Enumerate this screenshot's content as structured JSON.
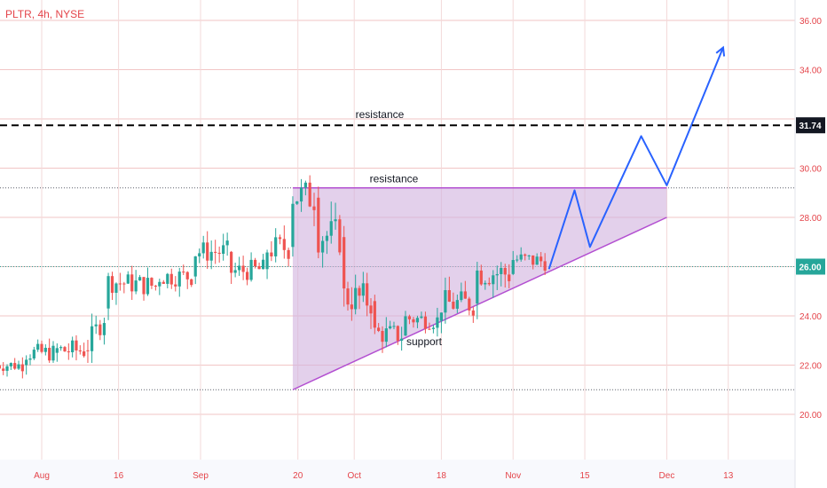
{
  "header": {
    "ticker": "PLTR, 4h, NYSE"
  },
  "colors": {
    "up": "#26a69a",
    "down": "#ef5350",
    "triangle_fill": "#d1b1dd",
    "triangle_edge": "#b34fd1",
    "projection": "#2962ff",
    "price_label_text": "#e4444a",
    "current_price_badge": "#26a69a",
    "dashed_level_badge": "#131722",
    "grid": "#f2c6c6"
  },
  "chart_data": {
    "type": "candlestick",
    "title": "PLTR, 4h, NYSE",
    "y_axis": {
      "side": "right",
      "range": [
        18.5,
        37.0
      ],
      "tick_labels": [
        "36.00",
        "34.00",
        "31.74",
        "30.00",
        "28.00",
        "26.00",
        "24.00",
        "22.00",
        "20.00"
      ]
    },
    "x_axis": {
      "tick_labels": [
        "Aug",
        "16",
        "Sep",
        "20",
        "Oct",
        "18",
        "Nov",
        "15",
        "Dec",
        "13"
      ]
    },
    "grid": true,
    "candles_approx": [
      {
        "date": "2021-07-23",
        "low": 21.8,
        "high": 22.6,
        "open": 22.2,
        "close": 22.0
      },
      {
        "date": "2021-07-29",
        "low": 21.7,
        "high": 22.9,
        "open": 22.0,
        "close": 22.5
      },
      {
        "date": "2021-08-04",
        "low": 21.8,
        "high": 23.3,
        "open": 22.5,
        "close": 22.6
      },
      {
        "date": "2021-08-10",
        "low": 21.9,
        "high": 23.6,
        "open": 22.6,
        "close": 22.8
      },
      {
        "date": "2021-08-14",
        "low": 24.0,
        "high": 26.0,
        "open": 24.3,
        "close": 25.4
      },
      {
        "date": "2021-08-24",
        "low": 24.8,
        "high": 26.1,
        "open": 25.2,
        "close": 25.6
      },
      {
        "date": "2021-08-31",
        "low": 25.2,
        "high": 26.9,
        "open": 25.6,
        "close": 26.6
      },
      {
        "date": "2021-09-07",
        "low": 25.1,
        "high": 26.8,
        "open": 26.6,
        "close": 25.8
      },
      {
        "date": "2021-09-14",
        "low": 25.6,
        "high": 27.0,
        "open": 25.9,
        "close": 26.7
      },
      {
        "date": "2021-09-19",
        "low": 26.5,
        "high": 29.2,
        "open": 26.8,
        "close": 28.9
      },
      {
        "date": "2021-09-24",
        "low": 26.8,
        "high": 29.2,
        "open": 28.8,
        "close": 27.3
      },
      {
        "date": "2021-09-29",
        "low": 24.3,
        "high": 27.5,
        "open": 27.2,
        "close": 24.8
      },
      {
        "date": "2021-10-05",
        "low": 22.9,
        "high": 24.8,
        "open": 24.6,
        "close": 23.3
      },
      {
        "date": "2021-10-11",
        "low": 23.0,
        "high": 24.4,
        "open": 23.2,
        "close": 23.9
      },
      {
        "date": "2021-10-18",
        "low": 23.6,
        "high": 24.9,
        "open": 23.8,
        "close": 24.5
      },
      {
        "date": "2021-10-25",
        "low": 24.1,
        "high": 26.8,
        "open": 24.5,
        "close": 25.8
      },
      {
        "date": "2021-11-01",
        "low": 25.0,
        "high": 26.8,
        "open": 25.7,
        "close": 26.3
      },
      {
        "date": "2021-11-08",
        "low": 25.5,
        "high": 26.5,
        "open": 26.2,
        "close": 26.0
      }
    ],
    "current_price": 26.0,
    "annotations": [
      {
        "type": "horizontal_dashed_line",
        "price": 31.74,
        "label": "resistance",
        "price_badge": "31.74"
      },
      {
        "type": "ascending_triangle",
        "label_top": "resistance",
        "label_bottom": "support",
        "points": [
          {
            "date": "2021-09-19",
            "price": 21.0
          },
          {
            "date": "2021-09-19",
            "price": 29.2
          },
          {
            "date": "2021-12-01",
            "price": 29.2
          },
          {
            "date": "2021-12-01",
            "price": 28.0
          }
        ]
      },
      {
        "type": "projection_path",
        "points": [
          {
            "date": "2021-11-08",
            "price": 25.9
          },
          {
            "date": "2021-11-13",
            "price": 29.1
          },
          {
            "date": "2021-11-16",
            "price": 26.8
          },
          {
            "date": "2021-11-26",
            "price": 31.3
          },
          {
            "date": "2021-12-01",
            "price": 29.3
          },
          {
            "date": "2021-12-12",
            "price": 34.9
          }
        ]
      }
    ],
    "dotted_levels": [
      29.2,
      26.0,
      21.0
    ]
  },
  "labels": {
    "resistance_dashed": "resistance",
    "resistance_triangle": "resistance",
    "support": "support"
  }
}
